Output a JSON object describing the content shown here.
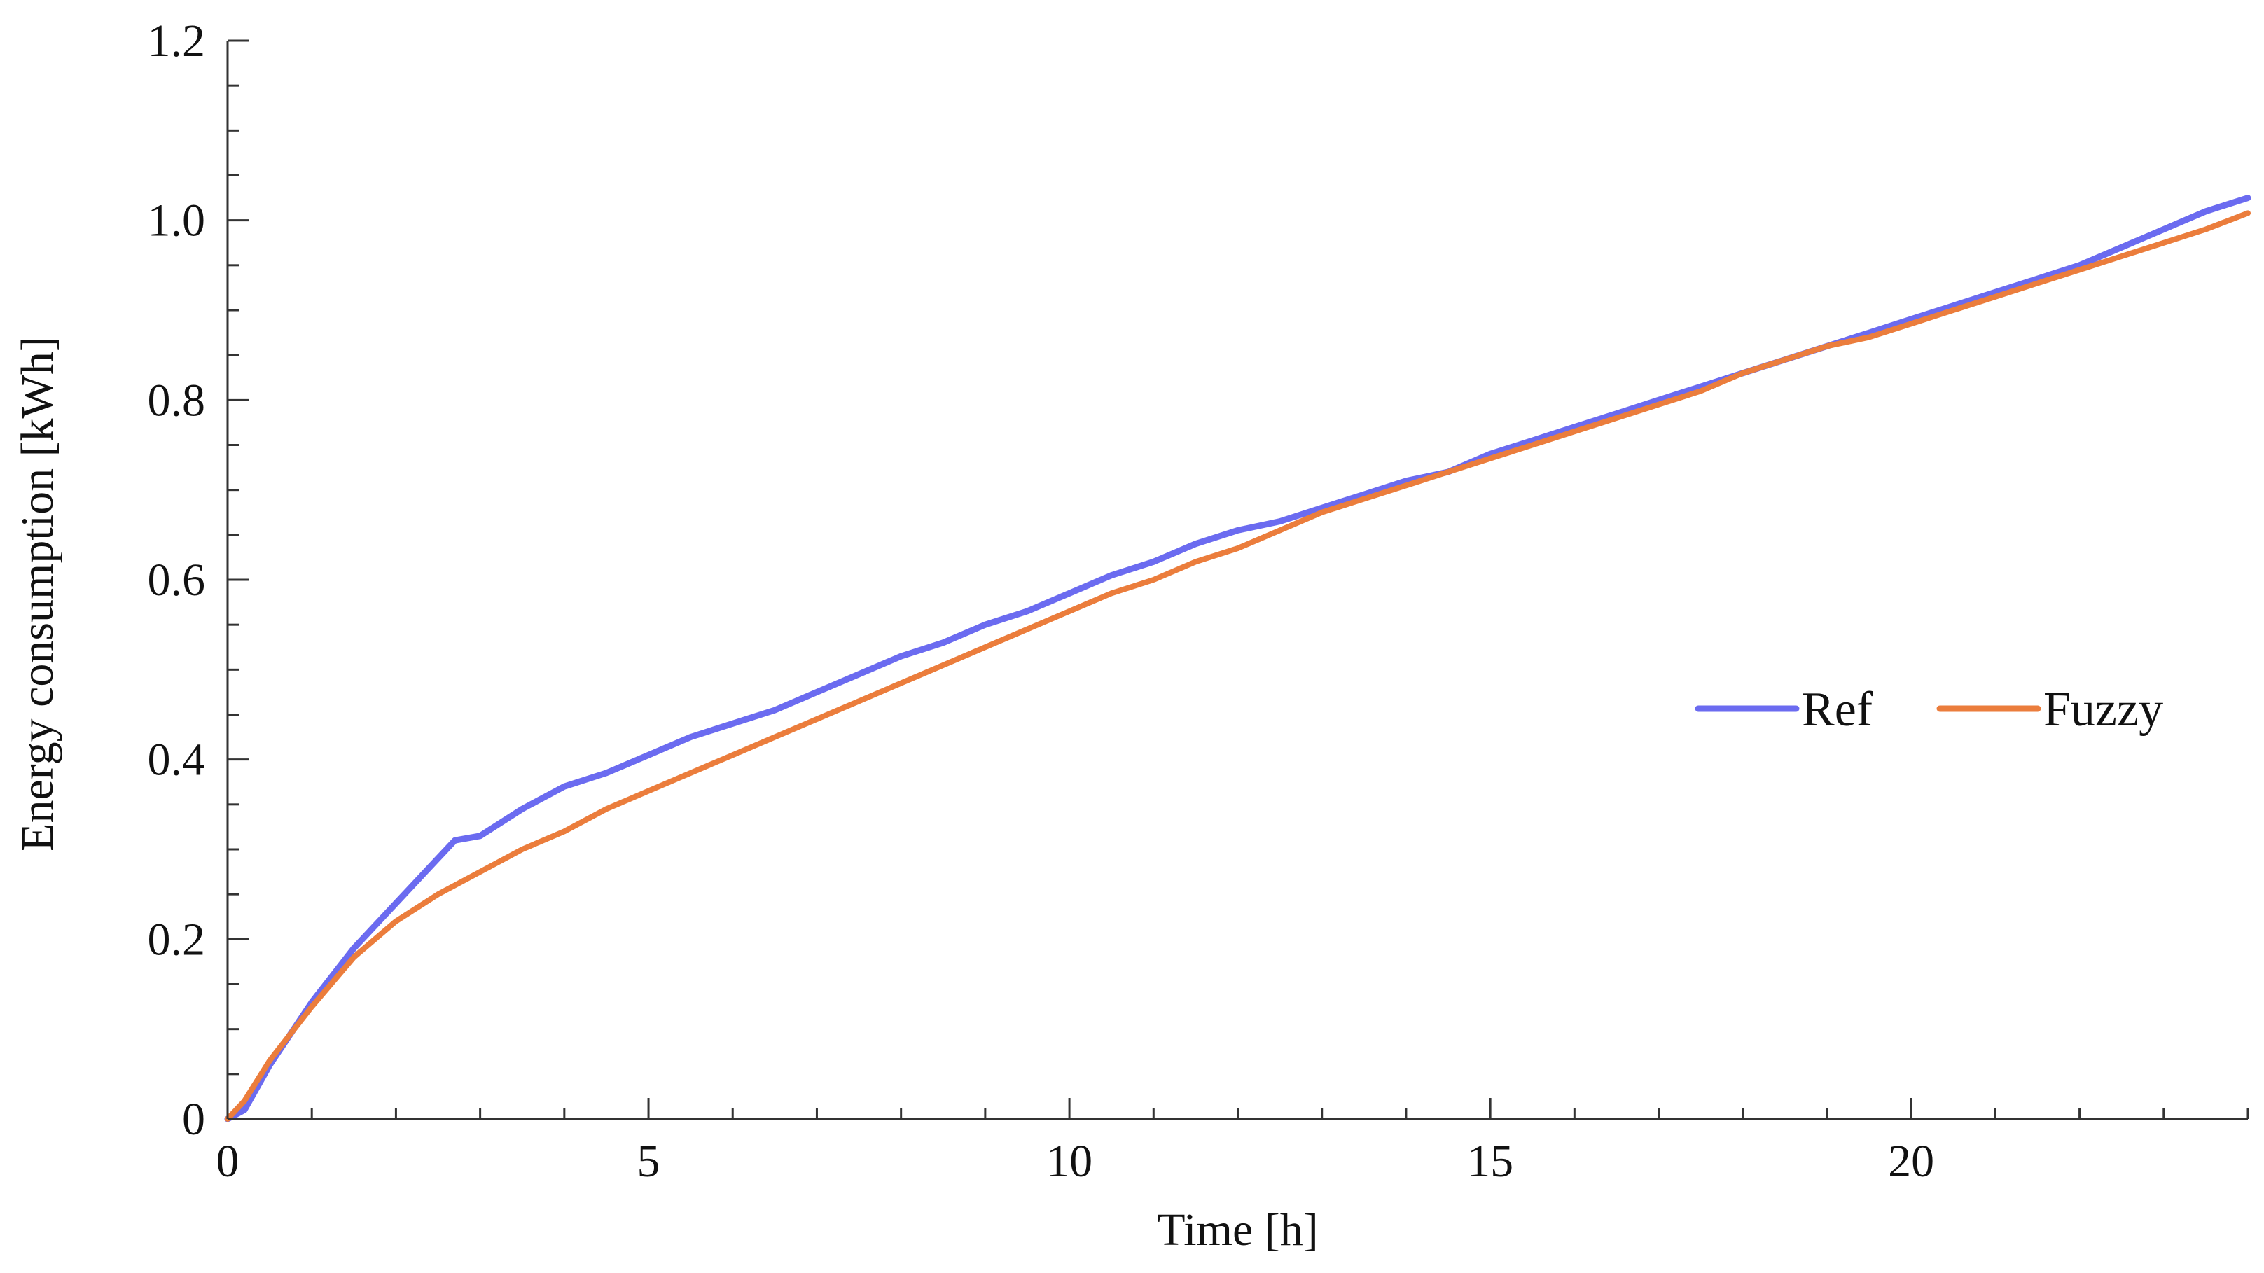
{
  "chart_data": {
    "type": "line",
    "title": "",
    "xlabel": "Time [h]",
    "ylabel": "Energy consumption [kWh]",
    "xlim": [
      0,
      24
    ],
    "ylim": [
      0,
      1.2
    ],
    "x_ticks": [
      0,
      5,
      10,
      15,
      20
    ],
    "x_tick_labels": [
      "0",
      "5",
      "10",
      "15",
      "20"
    ],
    "y_ticks": [
      0,
      0.2,
      0.4,
      0.6,
      0.8,
      1.0,
      1.2
    ],
    "y_tick_labels": [
      "0",
      "0.2",
      "0.4",
      "0.6",
      "0.8",
      "1.0",
      "1.2"
    ],
    "grid": false,
    "legend_position": "right",
    "series": [
      {
        "name": "Ref",
        "color": "#6B6BF0",
        "points": [
          [
            0,
            0
          ],
          [
            0.2,
            0.01
          ],
          [
            0.5,
            0.06
          ],
          [
            1.0,
            0.13
          ],
          [
            1.5,
            0.19
          ],
          [
            2.0,
            0.24
          ],
          [
            2.5,
            0.29
          ],
          [
            2.7,
            0.31
          ],
          [
            3.0,
            0.315
          ],
          [
            3.5,
            0.345
          ],
          [
            4.0,
            0.37
          ],
          [
            4.5,
            0.385
          ],
          [
            5.0,
            0.405
          ],
          [
            5.5,
            0.425
          ],
          [
            6.0,
            0.44
          ],
          [
            6.5,
            0.455
          ],
          [
            7.0,
            0.475
          ],
          [
            7.5,
            0.495
          ],
          [
            8.0,
            0.515
          ],
          [
            8.5,
            0.53
          ],
          [
            9.0,
            0.55
          ],
          [
            9.5,
            0.565
          ],
          [
            10.0,
            0.585
          ],
          [
            10.5,
            0.605
          ],
          [
            11.0,
            0.62
          ],
          [
            11.5,
            0.64
          ],
          [
            12.0,
            0.655
          ],
          [
            12.5,
            0.665
          ],
          [
            13.0,
            0.68
          ],
          [
            13.5,
            0.695
          ],
          [
            14.0,
            0.71
          ],
          [
            14.5,
            0.72
          ],
          [
            15.0,
            0.74
          ],
          [
            15.5,
            0.755
          ],
          [
            16.0,
            0.77
          ],
          [
            16.5,
            0.785
          ],
          [
            17.0,
            0.8
          ],
          [
            17.5,
            0.815
          ],
          [
            18.0,
            0.83
          ],
          [
            18.5,
            0.845
          ],
          [
            19.0,
            0.86
          ],
          [
            19.5,
            0.875
          ],
          [
            20.0,
            0.89
          ],
          [
            20.5,
            0.905
          ],
          [
            21.0,
            0.92
          ],
          [
            21.5,
            0.935
          ],
          [
            22.0,
            0.95
          ],
          [
            22.5,
            0.97
          ],
          [
            23.0,
            0.99
          ],
          [
            23.5,
            1.01
          ],
          [
            24.0,
            1.025
          ]
        ]
      },
      {
        "name": "Fuzzy",
        "color": "#EB7D3C",
        "points": [
          [
            0,
            0
          ],
          [
            0.2,
            0.02
          ],
          [
            0.5,
            0.065
          ],
          [
            1.0,
            0.125
          ],
          [
            1.5,
            0.18
          ],
          [
            2.0,
            0.22
          ],
          [
            2.5,
            0.25
          ],
          [
            3.0,
            0.275
          ],
          [
            3.5,
            0.3
          ],
          [
            4.0,
            0.32
          ],
          [
            4.5,
            0.345
          ],
          [
            5.0,
            0.365
          ],
          [
            5.5,
            0.385
          ],
          [
            6.0,
            0.405
          ],
          [
            6.5,
            0.425
          ],
          [
            7.0,
            0.445
          ],
          [
            7.5,
            0.465
          ],
          [
            8.0,
            0.485
          ],
          [
            8.5,
            0.505
          ],
          [
            9.0,
            0.525
          ],
          [
            9.5,
            0.545
          ],
          [
            10.0,
            0.565
          ],
          [
            10.5,
            0.585
          ],
          [
            11.0,
            0.6
          ],
          [
            11.5,
            0.62
          ],
          [
            12.0,
            0.635
          ],
          [
            12.5,
            0.655
          ],
          [
            13.0,
            0.675
          ],
          [
            13.5,
            0.69
          ],
          [
            14.0,
            0.705
          ],
          [
            14.5,
            0.72
          ],
          [
            15.0,
            0.735
          ],
          [
            15.5,
            0.75
          ],
          [
            16.0,
            0.765
          ],
          [
            16.5,
            0.78
          ],
          [
            17.0,
            0.795
          ],
          [
            17.5,
            0.81
          ],
          [
            18.0,
            0.83
          ],
          [
            18.5,
            0.845
          ],
          [
            19.0,
            0.86
          ],
          [
            19.5,
            0.87
          ],
          [
            20.0,
            0.885
          ],
          [
            20.5,
            0.9
          ],
          [
            21.0,
            0.915
          ],
          [
            21.5,
            0.93
          ],
          [
            22.0,
            0.945
          ],
          [
            22.5,
            0.96
          ],
          [
            23.0,
            0.975
          ],
          [
            23.5,
            0.99
          ],
          [
            24.0,
            1.008
          ]
        ]
      }
    ]
  }
}
